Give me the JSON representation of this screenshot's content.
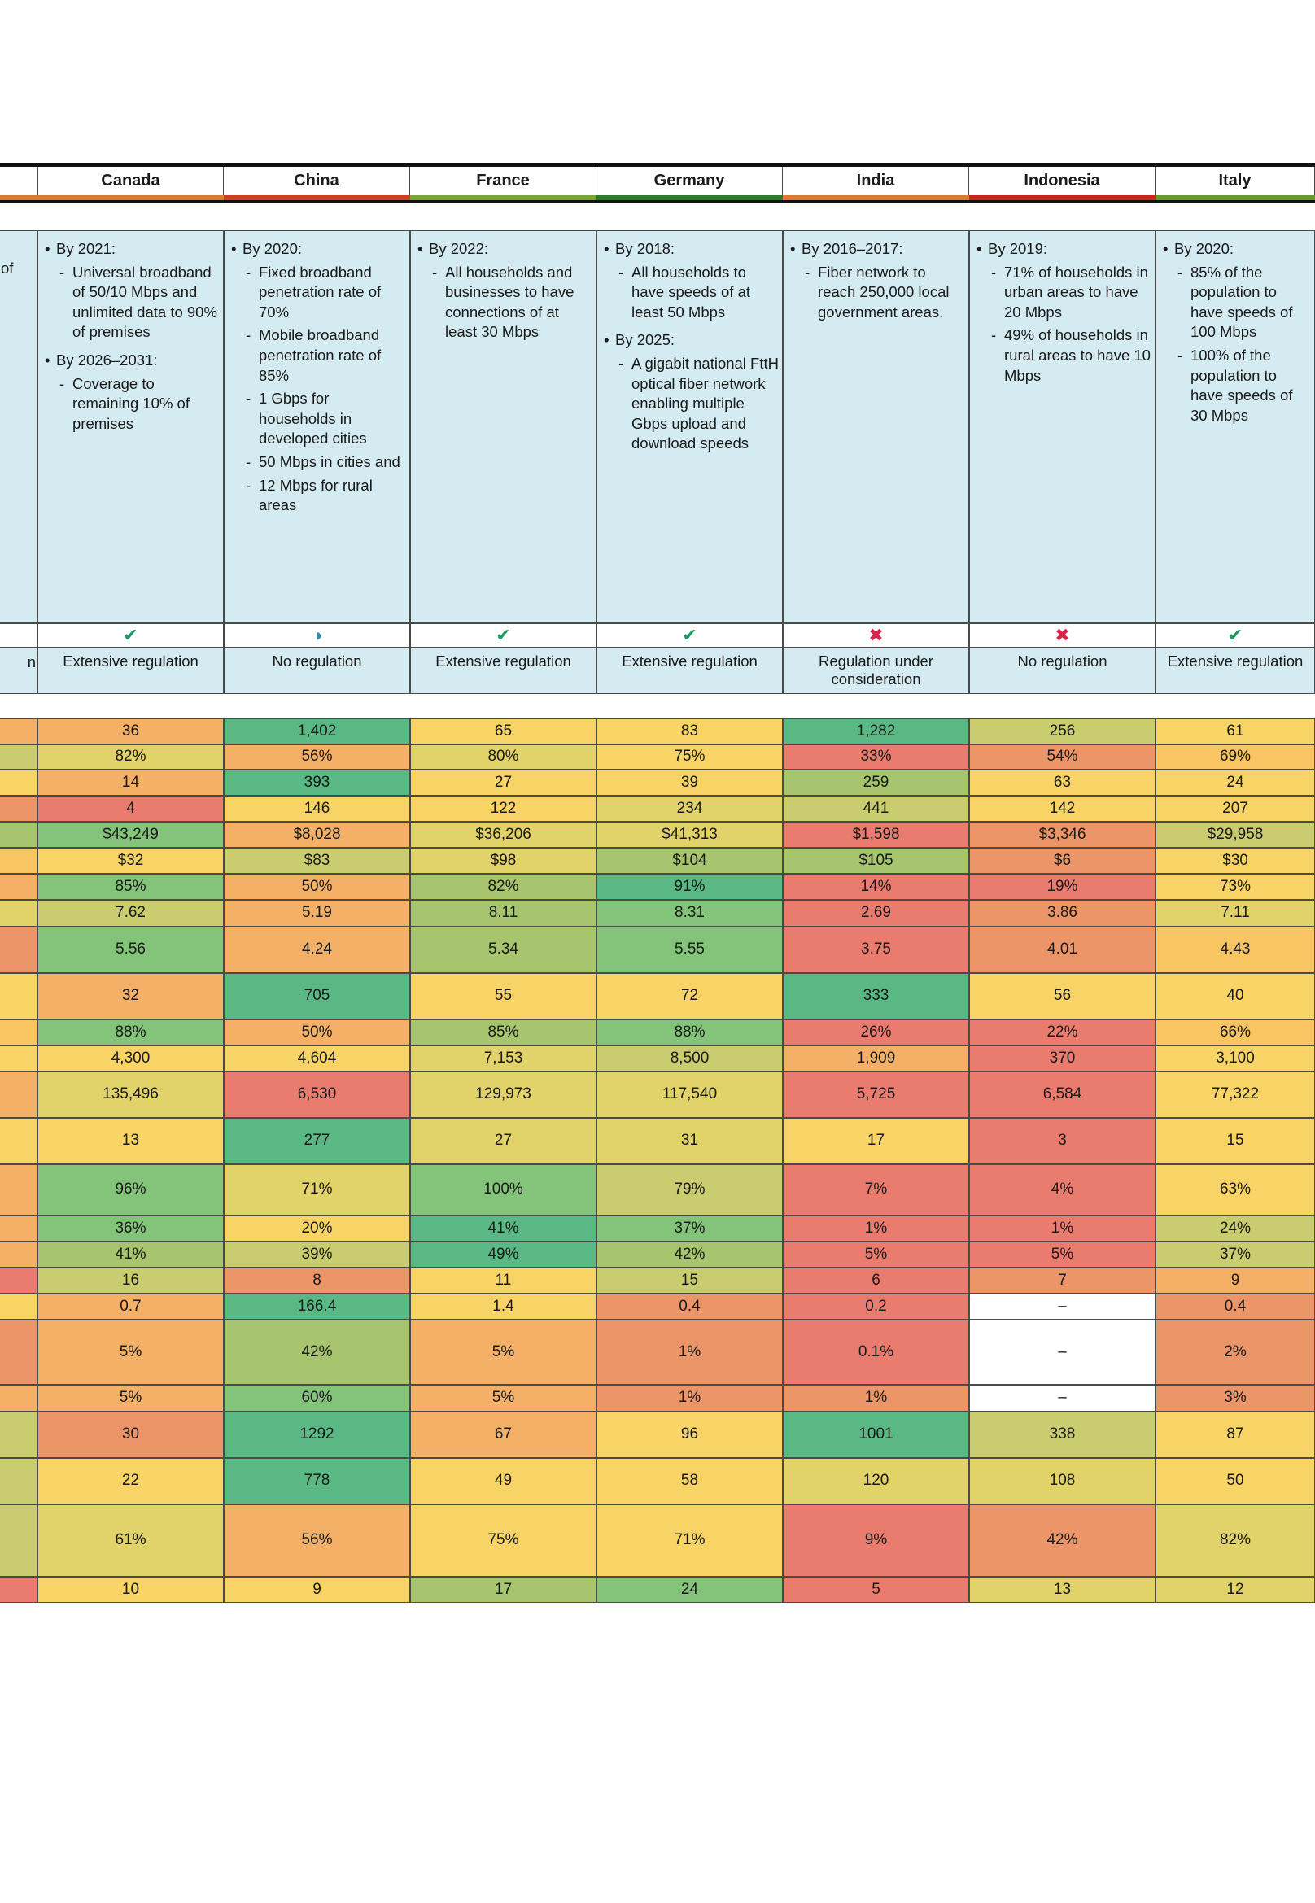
{
  "countries": [
    "Canada",
    "China",
    "France",
    "Germany",
    "India",
    "Indonesia",
    "Italy"
  ],
  "header_bar_colors": [
    "#e07a2f",
    "#d43d2a",
    "#7aa33a",
    "#2f7a2a",
    "#e07a2f",
    "#c9251e",
    "#6e9830"
  ],
  "targets": [
    [
      {
        "t": "By 2021:",
        "s": [
          "Universal broadband of 50/10 Mbps and unlimited data to 90% of premises"
        ]
      },
      {
        "t": "By 2026–2031:",
        "s": [
          "Coverage to remaining 10% of premises"
        ]
      }
    ],
    [
      {
        "t": "By 2020:",
        "s": [
          "Fixed broadband penetration rate of 70%",
          "Mobile broadband penetration rate of 85%",
          "1 Gbps for households in developed cities",
          "50 Mbps in cities and",
          "12 Mbps for rural areas"
        ]
      }
    ],
    [
      {
        "t": "By 2022:",
        "s": [
          "All households and businesses to have connections of at least 30 Mbps"
        ]
      }
    ],
    [
      {
        "t": "By 2018:",
        "s": [
          "All households to have speeds of at least 50 Mbps"
        ]
      },
      {
        "t": "By 2025:",
        "s": [
          "A gigabit national FttH optical fiber network enabling multiple Gbps upload and download speeds"
        ]
      }
    ],
    [
      {
        "t": "By 2016–2017:",
        "s": [
          "Fiber network to reach 250,000 local government areas."
        ]
      }
    ],
    [
      {
        "t": "By 2019:",
        "s": [
          "71% of households in urban areas to have 20 Mbps",
          "49% of households in rural areas to have 10 Mbps"
        ]
      }
    ],
    [
      {
        "t": "By 2020:",
        "s": [
          "85% of the population to have speeds of 100 Mbps",
          "100% of the population to have speeds of 30 Mbps"
        ]
      }
    ]
  ],
  "status_icons": [
    {
      "glyph": "✔",
      "kind": "ok",
      "name": "check-icon"
    },
    {
      "glyph": "◑",
      "kind": "part",
      "name": "half-circle-icon"
    },
    {
      "glyph": "✔",
      "kind": "ok",
      "name": "check-icon"
    },
    {
      "glyph": "✔",
      "kind": "ok",
      "name": "check-icon"
    },
    {
      "glyph": "✖",
      "kind": "no",
      "name": "cross-icon"
    },
    {
      "glyph": "✖",
      "kind": "no",
      "name": "cross-icon"
    },
    {
      "glyph": "✔",
      "kind": "ok",
      "name": "check-icon"
    }
  ],
  "left_edge": {
    "target_text": "of",
    "regulation_text": "n"
  },
  "regulation": [
    "Extensive regulation",
    "No regulation",
    "Extensive regulation",
    "Extensive regulation",
    "Regulation under consideration",
    "No regulation",
    "Extensive regulation"
  ],
  "palette": {
    "G1": "#5ab885",
    "G2": "#84c37a",
    "G3": "#a6c56e",
    "Y0": "#c9cc6f",
    "Y1": "#e2d26a",
    "Y2": "#f8d466",
    "Y3": "#f9c462",
    "O1": "#f4b066",
    "O2": "#ec9569",
    "R1": "#e97c6f",
    "W": "#ffffff"
  },
  "rows": [
    {
      "edge": "O1",
      "values": [
        "36",
        "1,402",
        "65",
        "83",
        "1,282",
        "256",
        "61"
      ],
      "colors": [
        "O1",
        "G1",
        "Y2",
        "Y2",
        "G1",
        "Y0",
        "Y2"
      ]
    },
    {
      "edge": "Y0",
      "values": [
        "82%",
        "56%",
        "80%",
        "75%",
        "33%",
        "54%",
        "69%"
      ],
      "colors": [
        "Y1",
        "O1",
        "Y1",
        "Y2",
        "R1",
        "O2",
        "Y3"
      ]
    },
    {
      "edge": "Y2",
      "values": [
        "14",
        "393",
        "27",
        "39",
        "259",
        "63",
        "24"
      ],
      "colors": [
        "O1",
        "G1",
        "Y2",
        "Y2",
        "G3",
        "Y2",
        "Y2"
      ]
    },
    {
      "edge": "O2",
      "values": [
        "4",
        "146",
        "122",
        "234",
        "441",
        "142",
        "207"
      ],
      "colors": [
        "R1",
        "Y2",
        "Y2",
        "Y1",
        "Y0",
        "Y2",
        "Y2"
      ]
    },
    {
      "edge": "G3",
      "values": [
        "$43,249",
        "$8,028",
        "$36,206",
        "$41,313",
        "$1,598",
        "$3,346",
        "$29,958"
      ],
      "colors": [
        "G2",
        "O1",
        "Y1",
        "Y1",
        "R1",
        "O2",
        "Y0"
      ]
    },
    {
      "edge": "Y3",
      "values": [
        "$32",
        "$83",
        "$98",
        "$104",
        "$105",
        "$6",
        "$30"
      ],
      "colors": [
        "Y2",
        "Y0",
        "Y1",
        "G3",
        "G3",
        "O2",
        "Y2"
      ]
    },
    {
      "edge": "O1",
      "values": [
        "85%",
        "50%",
        "82%",
        "91%",
        "14%",
        "19%",
        "73%"
      ],
      "colors": [
        "G2",
        "O1",
        "G3",
        "G1",
        "R1",
        "R1",
        "Y2"
      ]
    },
    {
      "edge": "Y1",
      "values": [
        "7.62",
        "5.19",
        "8.11",
        "8.31",
        "2.69",
        "3.86",
        "7.11"
      ],
      "colors": [
        "Y0",
        "O1",
        "G3",
        "G2",
        "R1",
        "O2",
        "Y1"
      ]
    },
    {
      "edge": "O2",
      "values": [
        "5.56",
        "4.24",
        "5.34",
        "5.55",
        "3.75",
        "4.01",
        "4.43"
      ],
      "colors": [
        "G2",
        "O1",
        "G3",
        "G2",
        "R1",
        "O2",
        "Y3"
      ]
    },
    {
      "edge": "Y2",
      "values": [
        "32",
        "705",
        "55",
        "72",
        "333",
        "56",
        "40"
      ],
      "colors": [
        "O1",
        "G1",
        "Y2",
        "Y2",
        "G1",
        "Y2",
        "Y2"
      ]
    },
    {
      "edge": "Y3",
      "values": [
        "88%",
        "50%",
        "85%",
        "88%",
        "26%",
        "22%",
        "66%"
      ],
      "colors": [
        "G2",
        "O1",
        "G3",
        "G2",
        "R1",
        "R1",
        "Y3"
      ]
    },
    {
      "edge": "Y2",
      "values": [
        "4,300",
        "4,604",
        "7,153",
        "8,500",
        "1,909",
        "370",
        "3,100"
      ],
      "colors": [
        "Y2",
        "Y2",
        "Y1",
        "Y0",
        "O1",
        "R1",
        "Y2"
      ]
    },
    {
      "edge": "O1",
      "values": [
        "135,496",
        "6,530",
        "129,973",
        "117,540",
        "5,725",
        "6,584",
        "77,322"
      ],
      "colors": [
        "Y1",
        "R1",
        "Y1",
        "Y1",
        "R1",
        "R1",
        "Y2"
      ]
    },
    {
      "edge": "Y2",
      "values": [
        "13",
        "277",
        "27",
        "31",
        "17",
        "3",
        "15"
      ],
      "colors": [
        "Y2",
        "G1",
        "Y1",
        "Y1",
        "Y2",
        "R1",
        "Y2"
      ]
    },
    {
      "edge": "O1",
      "values": [
        "96%",
        "71%",
        "100%",
        "79%",
        "7%",
        "4%",
        "63%"
      ],
      "colors": [
        "G2",
        "Y1",
        "G2",
        "Y0",
        "R1",
        "R1",
        "Y2"
      ]
    },
    {
      "edge": "O1",
      "values": [
        "36%",
        "20%",
        "41%",
        "37%",
        "1%",
        "1%",
        "24%"
      ],
      "colors": [
        "G2",
        "Y2",
        "G1",
        "G2",
        "R1",
        "R1",
        "Y0"
      ]
    },
    {
      "edge": "O1",
      "values": [
        "41%",
        "39%",
        "49%",
        "42%",
        "5%",
        "5%",
        "37%"
      ],
      "colors": [
        "G3",
        "Y0",
        "G1",
        "G3",
        "R1",
        "R1",
        "Y0"
      ]
    },
    {
      "edge": "R1",
      "values": [
        "16",
        "8",
        "11",
        "15",
        "6",
        "7",
        "9"
      ],
      "colors": [
        "Y0",
        "O2",
        "Y2",
        "Y0",
        "R1",
        "O2",
        "O1"
      ]
    },
    {
      "edge": "Y2",
      "values": [
        "0.7",
        "166.4",
        "1.4",
        "0.4",
        "0.2",
        "–",
        "0.4"
      ],
      "colors": [
        "O1",
        "G1",
        "Y2",
        "O2",
        "R1",
        "W",
        "O2"
      ]
    },
    {
      "edge": "O2",
      "values": [
        "5%",
        "42%",
        "5%",
        "1%",
        "0.1%",
        "–",
        "2%"
      ],
      "colors": [
        "O1",
        "G3",
        "O1",
        "O2",
        "R1",
        "W",
        "O2"
      ]
    },
    {
      "edge": "O1",
      "values": [
        "5%",
        "60%",
        "5%",
        "1%",
        "1%",
        "–",
        "3%"
      ],
      "colors": [
        "O1",
        "G2",
        "O1",
        "O2",
        "O2",
        "W",
        "O2"
      ]
    },
    {
      "edge": "Y0",
      "values": [
        "30",
        "1292",
        "67",
        "96",
        "1001",
        "338",
        "87"
      ],
      "colors": [
        "O2",
        "G1",
        "O1",
        "Y2",
        "G1",
        "Y0",
        "Y2"
      ]
    },
    {
      "edge": "Y0",
      "values": [
        "22",
        "778",
        "49",
        "58",
        "120",
        "108",
        "50"
      ],
      "colors": [
        "Y2",
        "G1",
        "Y2",
        "Y2",
        "Y1",
        "Y1",
        "Y2"
      ]
    },
    {
      "edge": "Y0",
      "values": [
        "61%",
        "56%",
        "75%",
        "71%",
        "9%",
        "42%",
        "82%"
      ],
      "colors": [
        "Y1",
        "O1",
        "Y2",
        "Y2",
        "R1",
        "O2",
        "Y1"
      ]
    },
    {
      "edge": "R1",
      "values": [
        "10",
        "9",
        "17",
        "24",
        "5",
        "13",
        "12"
      ],
      "colors": [
        "Y2",
        "Y2",
        "G3",
        "G2",
        "R1",
        "Y1",
        "Y1"
      ]
    }
  ]
}
